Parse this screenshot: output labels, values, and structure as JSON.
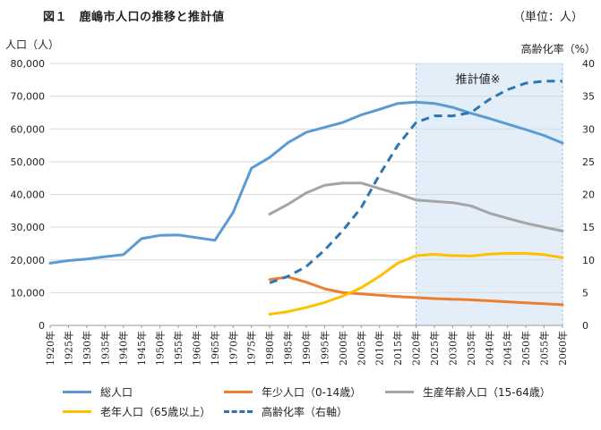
{
  "header": {
    "title": "図１　鹿嶋市人口の推移と推計値",
    "unit": "（単位：人）"
  },
  "chart_data": {
    "type": "line",
    "title": "図１　鹿嶋市人口の推移と推計値",
    "ylabel_left": "人口（人）",
    "ylabel_right": "高齢化率（%）",
    "ylim": [
      0,
      80000
    ],
    "ylim_right": [
      0,
      40
    ],
    "yticks_left": [
      "0",
      "10,000",
      "20,000",
      "30,000",
      "40,000",
      "50,000",
      "60,000",
      "70,000",
      "80,000"
    ],
    "yticks_right": [
      "0",
      "5",
      "10",
      "15",
      "20",
      "25",
      "30",
      "35",
      "40"
    ],
    "categories": [
      "1920年",
      "1925年",
      "1930年",
      "1935年",
      "1940年",
      "1945年",
      "1950年",
      "1955年",
      "1960年",
      "1965年",
      "1970年",
      "1975年",
      "1980年",
      "1985年",
      "1990年",
      "1995年",
      "2000年",
      "2005年",
      "2010年",
      "2015年",
      "2020年",
      "2025年",
      "2030年",
      "2035年",
      "2040年",
      "2045年",
      "2050年",
      "2055年",
      "2060年"
    ],
    "estimate_label": "推計値※",
    "estimate_start": "2020年",
    "grid": true,
    "legend_position": "bottom",
    "colors": {
      "total": "#5b9bd5",
      "young": "#ed7d31",
      "working": "#a5a5a5",
      "elderly": "#ffc000",
      "aging": "#2e75b6",
      "estimate_band": "#deebf7"
    },
    "series": [
      {
        "key": "total",
        "name": "総人口",
        "axis": "left",
        "style": "solid",
        "values": [
          19000,
          19800,
          20300,
          21000,
          21600,
          26500,
          27500,
          27600,
          26800,
          26000,
          34500,
          48000,
          51300,
          55800,
          59000,
          60500,
          62000,
          64300,
          66000,
          67800,
          68200,
          67800,
          66600,
          64800,
          63200,
          61500,
          59800,
          58000,
          55700
        ]
      },
      {
        "key": "young",
        "name": "年少人口（0-14歳）",
        "axis": "left",
        "style": "solid",
        "values": [
          null,
          null,
          null,
          null,
          null,
          null,
          null,
          null,
          null,
          null,
          null,
          null,
          14000,
          14800,
          13200,
          11200,
          10000,
          9600,
          9200,
          8800,
          8500,
          8200,
          8000,
          7800,
          7500,
          7200,
          6900,
          6600,
          6300
        ]
      },
      {
        "key": "working",
        "name": "生産年齢人口（15-64歳）",
        "axis": "left",
        "style": "solid",
        "values": [
          null,
          null,
          null,
          null,
          null,
          null,
          null,
          null,
          null,
          null,
          null,
          null,
          34000,
          37000,
          40500,
          42800,
          43500,
          43500,
          41800,
          40200,
          38300,
          37900,
          37500,
          36500,
          34300,
          32700,
          31200,
          30000,
          28800
        ]
      },
      {
        "key": "elderly",
        "name": "老年人口（65歳以上）",
        "axis": "left",
        "style": "solid",
        "values": [
          null,
          null,
          null,
          null,
          null,
          null,
          null,
          null,
          null,
          null,
          null,
          null,
          3400,
          4200,
          5500,
          7000,
          9000,
          11500,
          15000,
          19000,
          21300,
          21700,
          21300,
          21200,
          21800,
          22000,
          22000,
          21600,
          20700
        ]
      },
      {
        "key": "aging",
        "name": "高齢化率（右軸）",
        "axis": "right",
        "style": "dashed",
        "values": [
          null,
          null,
          null,
          null,
          null,
          null,
          null,
          null,
          null,
          null,
          null,
          null,
          6.5,
          7.5,
          9.0,
          11.5,
          14.5,
          18.0,
          23.0,
          27.5,
          31.0,
          32.0,
          32.0,
          32.5,
          34.5,
          36.0,
          37.0,
          37.3,
          37.3
        ]
      }
    ]
  }
}
